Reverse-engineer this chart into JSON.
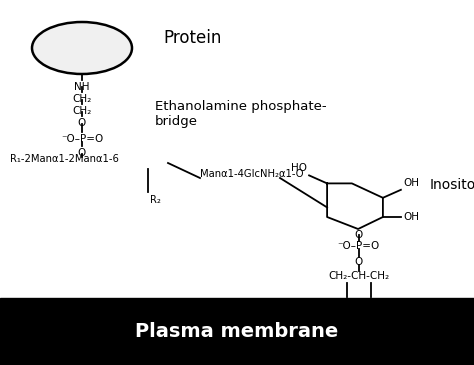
{
  "background_color": "#ffffff",
  "membrane_color": "#000000",
  "membrane_text_color": "#ffffff",
  "membrane_text": "Plasma membrane",
  "protein_label": "Protein",
  "ethanolamine_label": "Ethanolamine phosphate-\nbridge",
  "inositol_label": "Inositol",
  "chain_label": "R₁-2Manα1-2Manα1-6",
  "man_label": "Manα1-4GlcNH₂α1-O",
  "r2_label": "R₂",
  "glycerol_label": "CH₂-CH-CH₂"
}
